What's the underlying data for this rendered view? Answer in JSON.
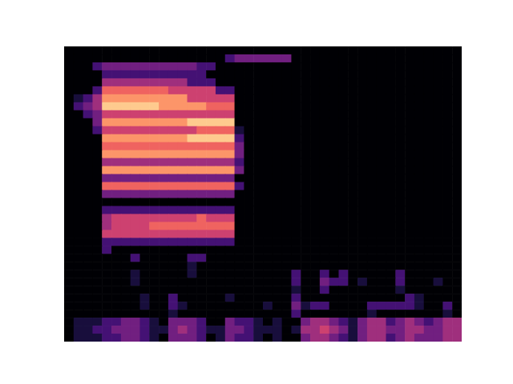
{
  "chart_data": {
    "type": "heatmap",
    "tick_labels": false,
    "xlim": [
      0,
      42
    ],
    "ylim": [
      0,
      37
    ],
    "crange": [
      0,
      9
    ],
    "cells": [
      [
        0,
        0,
        0,
        0,
        0,
        0,
        0,
        0,
        0,
        0,
        0,
        0,
        0,
        0,
        0,
        0,
        0,
        0,
        0,
        0,
        0,
        0,
        0,
        0,
        0,
        0,
        0,
        0,
        0,
        0,
        0,
        0,
        0,
        0,
        0,
        0,
        0,
        0,
        0,
        0,
        0,
        0
      ],
      [
        0,
        0,
        0,
        0,
        0,
        0,
        0,
        0,
        0,
        0,
        0,
        0,
        0,
        0,
        0,
        0,
        0,
        2,
        3,
        3,
        3,
        3,
        3,
        3,
        0,
        0,
        0,
        0,
        0,
        0,
        0,
        0,
        0,
        0,
        0,
        0,
        0,
        0,
        0,
        0,
        0,
        0
      ],
      [
        0,
        0,
        0,
        2,
        3,
        3,
        3,
        3,
        3,
        3,
        3,
        3,
        3,
        3,
        2,
        2,
        0,
        0,
        0,
        0,
        0,
        0,
        0,
        0,
        0,
        0,
        0,
        0,
        0,
        0,
        0,
        0,
        0,
        0,
        0,
        0,
        0,
        0,
        0,
        0,
        0,
        0
      ],
      [
        0,
        0,
        0,
        0,
        2,
        2,
        2,
        2,
        2,
        2,
        2,
        2,
        2,
        2,
        2,
        0,
        0,
        0,
        0,
        0,
        0,
        0,
        0,
        0,
        0,
        0,
        0,
        0,
        0,
        0,
        0,
        0,
        0,
        0,
        0,
        0,
        0,
        0,
        0,
        0,
        0,
        0
      ],
      [
        0,
        0,
        0,
        0,
        4,
        4,
        4,
        4,
        4,
        4,
        4,
        4,
        4,
        2,
        2,
        2,
        0,
        0,
        0,
        0,
        0,
        0,
        0,
        0,
        0,
        0,
        0,
        0,
        0,
        0,
        0,
        0,
        0,
        0,
        0,
        0,
        0,
        0,
        0,
        0,
        0,
        0
      ],
      [
        0,
        0,
        0,
        2,
        6,
        6,
        6,
        6,
        6,
        6,
        6,
        5,
        5,
        5,
        5,
        5,
        2,
        2,
        0,
        0,
        0,
        0,
        0,
        0,
        0,
        0,
        0,
        0,
        0,
        0,
        0,
        0,
        0,
        0,
        0,
        0,
        0,
        0,
        0,
        0,
        0,
        0
      ],
      [
        0,
        1,
        2,
        4,
        7,
        7,
        7,
        7,
        7,
        7,
        7,
        7,
        7,
        5,
        5,
        5,
        5,
        5,
        0,
        0,
        0,
        0,
        0,
        0,
        0,
        0,
        0,
        0,
        0,
        0,
        0,
        0,
        0,
        0,
        0,
        0,
        0,
        0,
        0,
        0,
        0,
        0
      ],
      [
        0,
        2,
        3,
        4,
        8,
        8,
        8,
        8,
        8,
        8,
        7,
        7,
        7,
        7,
        7,
        6,
        6,
        6,
        0,
        0,
        0,
        0,
        0,
        0,
        0,
        0,
        0,
        0,
        0,
        0,
        0,
        0,
        0,
        0,
        0,
        0,
        0,
        0,
        0,
        0,
        0,
        0
      ],
      [
        0,
        0,
        2,
        3,
        5,
        5,
        5,
        5,
        5,
        5,
        5,
        5,
        5,
        5,
        5,
        5,
        5,
        5,
        0,
        0,
        0,
        0,
        0,
        0,
        0,
        0,
        0,
        0,
        0,
        0,
        0,
        0,
        0,
        0,
        0,
        0,
        0,
        0,
        0,
        0,
        0,
        0
      ],
      [
        0,
        0,
        0,
        3,
        7,
        7,
        7,
        7,
        7,
        7,
        7,
        7,
        7,
        8,
        8,
        8,
        8,
        8,
        0,
        0,
        0,
        0,
        0,
        0,
        0,
        0,
        0,
        0,
        0,
        0,
        0,
        0,
        0,
        0,
        0,
        0,
        0,
        0,
        0,
        0,
        0,
        0
      ],
      [
        0,
        0,
        0,
        2,
        5,
        5,
        5,
        5,
        5,
        5,
        5,
        5,
        5,
        5,
        6,
        6,
        6,
        6,
        1,
        0,
        0,
        0,
        0,
        0,
        0,
        0,
        0,
        0,
        0,
        0,
        0,
        0,
        0,
        0,
        0,
        0,
        0,
        0,
        0,
        0,
        0,
        0
      ],
      [
        0,
        0,
        0,
        0,
        7,
        7,
        7,
        7,
        7,
        7,
        7,
        7,
        7,
        8,
        8,
        8,
        8,
        8,
        2,
        0,
        0,
        0,
        0,
        0,
        0,
        0,
        0,
        0,
        0,
        0,
        0,
        0,
        0,
        0,
        0,
        0,
        0,
        0,
        0,
        0,
        0,
        0
      ],
      [
        0,
        0,
        0,
        0,
        6,
        6,
        6,
        6,
        6,
        6,
        6,
        6,
        6,
        6,
        6,
        6,
        6,
        6,
        3,
        0,
        0,
        0,
        0,
        0,
        0,
        0,
        0,
        0,
        0,
        0,
        0,
        0,
        0,
        0,
        0,
        0,
        0,
        0,
        0,
        0,
        0,
        0
      ],
      [
        0,
        0,
        0,
        0,
        7,
        7,
        7,
        7,
        7,
        7,
        7,
        7,
        7,
        7,
        7,
        7,
        7,
        7,
        3,
        0,
        0,
        0,
        0,
        0,
        0,
        0,
        0,
        0,
        0,
        0,
        0,
        0,
        0,
        0,
        0,
        0,
        0,
        0,
        0,
        0,
        0,
        0
      ],
      [
        0,
        0,
        0,
        0,
        4,
        4,
        4,
        4,
        4,
        4,
        4,
        4,
        4,
        4,
        4,
        4,
        4,
        4,
        2,
        0,
        0,
        0,
        0,
        0,
        0,
        0,
        0,
        0,
        0,
        0,
        0,
        0,
        0,
        0,
        0,
        0,
        0,
        0,
        0,
        0,
        0,
        0
      ],
      [
        0,
        0,
        0,
        0,
        7,
        7,
        7,
        7,
        7,
        7,
        7,
        7,
        7,
        7,
        7,
        7,
        7,
        7,
        3,
        0,
        0,
        0,
        0,
        0,
        0,
        0,
        0,
        0,
        0,
        0,
        0,
        0,
        0,
        0,
        0,
        0,
        0,
        0,
        0,
        0,
        0,
        0
      ],
      [
        0,
        0,
        0,
        0,
        3,
        3,
        3,
        3,
        3,
        3,
        3,
        3,
        3,
        3,
        3,
        3,
        3,
        3,
        0,
        0,
        0,
        0,
        0,
        0,
        0,
        0,
        0,
        0,
        0,
        0,
        0,
        0,
        0,
        0,
        0,
        0,
        0,
        0,
        0,
        0,
        0,
        0
      ],
      [
        0,
        0,
        0,
        0,
        6,
        6,
        6,
        6,
        6,
        6,
        6,
        6,
        6,
        6,
        6,
        6,
        6,
        6,
        2,
        0,
        0,
        0,
        0,
        0,
        0,
        0,
        0,
        0,
        0,
        0,
        0,
        0,
        0,
        0,
        0,
        0,
        0,
        0,
        0,
        0,
        0,
        0
      ],
      [
        0,
        0,
        0,
        0,
        3,
        3,
        3,
        3,
        3,
        3,
        3,
        3,
        3,
        3,
        3,
        3,
        3,
        3,
        0,
        0,
        0,
        0,
        0,
        0,
        0,
        0,
        0,
        0,
        0,
        0,
        0,
        0,
        0,
        0,
        0,
        0,
        0,
        0,
        0,
        0,
        0,
        0
      ],
      [
        0,
        0,
        0,
        0,
        0,
        0,
        0,
        0,
        0,
        0,
        0,
        0,
        0,
        0,
        0,
        0,
        0,
        0,
        0,
        0,
        0,
        0,
        0,
        0,
        0,
        0,
        0,
        0,
        0,
        0,
        0,
        0,
        0,
        0,
        0,
        0,
        0,
        0,
        0,
        0,
        0,
        0
      ],
      [
        0,
        0,
        0,
        0,
        2,
        2,
        2,
        2,
        2,
        2,
        2,
        2,
        2,
        2,
        2,
        2,
        2,
        2,
        0,
        0,
        0,
        0,
        0,
        0,
        0,
        0,
        0,
        0,
        0,
        0,
        0,
        0,
        0,
        0,
        0,
        0,
        0,
        0,
        0,
        0,
        0,
        0
      ],
      [
        0,
        0,
        0,
        0,
        4,
        5,
        5,
        5,
        5,
        5,
        5,
        5,
        5,
        5,
        6,
        5,
        5,
        5,
        0,
        0,
        0,
        0,
        0,
        0,
        0,
        0,
        0,
        0,
        0,
        0,
        0,
        0,
        0,
        0,
        0,
        0,
        0,
        0,
        0,
        0,
        0,
        0
      ],
      [
        0,
        0,
        0,
        0,
        4,
        5,
        5,
        5,
        5,
        6,
        6,
        6,
        6,
        6,
        6,
        6,
        6,
        6,
        0,
        0,
        0,
        0,
        0,
        0,
        0,
        0,
        0,
        0,
        0,
        0,
        0,
        0,
        0,
        0,
        0,
        0,
        0,
        0,
        0,
        0,
        0,
        0
      ],
      [
        0,
        0,
        0,
        0,
        5,
        5,
        5,
        5,
        5,
        5,
        5,
        5,
        5,
        5,
        5,
        5,
        5,
        5,
        0,
        0,
        0,
        0,
        0,
        0,
        0,
        0,
        0,
        0,
        0,
        0,
        0,
        0,
        0,
        0,
        0,
        0,
        0,
        0,
        0,
        0,
        0,
        0
      ],
      [
        0,
        0,
        0,
        0,
        2,
        2,
        2,
        2,
        2,
        2,
        2,
        2,
        2,
        2,
        2,
        2,
        2,
        2,
        0,
        0,
        0,
        0,
        0,
        0,
        0,
        0,
        0,
        0,
        0,
        0,
        0,
        0,
        0,
        0,
        0,
        0,
        0,
        0,
        0,
        0,
        0,
        0
      ],
      [
        0,
        0,
        0,
        0,
        2,
        0,
        0,
        0,
        0,
        0,
        0,
        0,
        0,
        0,
        0,
        0,
        0,
        0,
        0,
        0,
        0,
        0,
        0,
        0,
        0,
        0,
        0,
        0,
        0,
        0,
        0,
        0,
        0,
        0,
        0,
        0,
        0,
        0,
        0,
        0,
        0,
        0
      ],
      [
        0,
        0,
        0,
        0,
        0,
        0,
        0,
        2,
        0,
        0,
        0,
        0,
        0,
        2,
        2,
        0,
        0,
        0,
        0,
        0,
        0,
        0,
        0,
        0,
        0,
        0,
        0,
        0,
        0,
        0,
        0,
        0,
        0,
        0,
        0,
        0,
        0,
        0,
        0,
        0,
        0,
        0
      ],
      [
        0,
        0,
        0,
        0,
        0,
        0,
        0,
        0,
        0,
        0,
        0,
        0,
        0,
        1,
        0,
        0,
        0,
        0,
        0,
        0,
        0,
        0,
        0,
        0,
        0,
        0,
        0,
        0,
        0,
        0,
        0,
        0,
        0,
        0,
        0,
        0,
        0,
        0,
        0,
        0,
        0,
        0
      ],
      [
        0,
        0,
        0,
        0,
        0,
        0,
        0,
        1,
        0,
        0,
        0,
        0,
        0,
        1,
        0,
        0,
        0,
        0,
        0,
        0,
        0,
        0,
        0,
        0,
        2,
        0,
        0,
        2,
        0,
        2,
        0,
        0,
        0,
        0,
        0,
        2,
        0,
        0,
        0,
        0,
        0,
        0
      ],
      [
        0,
        0,
        0,
        0,
        0,
        0,
        0,
        1,
        0,
        0,
        0,
        0,
        0,
        0,
        0,
        0,
        0,
        0,
        0,
        0,
        0,
        0,
        0,
        0,
        2,
        0,
        0,
        3,
        2,
        2,
        0,
        1,
        0,
        0,
        0,
        2,
        0,
        0,
        0,
        1,
        0,
        0
      ],
      [
        0,
        0,
        0,
        0,
        0,
        0,
        0,
        0,
        0,
        0,
        0,
        0,
        0,
        0,
        0,
        0,
        0,
        0,
        0,
        0,
        0,
        0,
        0,
        0,
        1,
        0,
        0,
        2,
        0,
        0,
        0,
        0,
        0,
        0,
        0,
        1,
        0,
        0,
        0,
        0,
        0,
        0
      ],
      [
        0,
        0,
        0,
        0,
        0,
        0,
        0,
        0,
        1,
        0,
        0,
        2,
        0,
        0,
        0,
        0,
        0,
        1,
        0,
        0,
        0,
        0,
        0,
        0,
        2,
        0,
        0,
        0,
        0,
        0,
        0,
        0,
        0,
        0,
        0,
        0,
        2,
        1,
        0,
        0,
        0,
        0
      ],
      [
        0,
        0,
        0,
        0,
        0,
        0,
        0,
        0,
        1,
        0,
        0,
        2,
        1,
        0,
        0,
        0,
        0,
        0,
        0,
        0,
        0,
        1,
        0,
        0,
        3,
        1,
        2,
        2,
        0,
        0,
        0,
        0,
        2,
        2,
        2,
        2,
        2,
        1,
        0,
        0,
        2,
        0
      ],
      [
        0,
        0,
        0,
        0,
        0,
        0,
        0,
        0,
        0,
        0,
        0,
        1,
        0,
        0,
        0,
        0,
        0,
        0,
        0,
        0,
        0,
        0,
        0,
        0,
        2,
        0,
        0,
        0,
        0,
        0,
        0,
        0,
        1,
        0,
        0,
        0,
        0,
        0,
        0,
        0,
        1,
        0
      ],
      [
        0,
        1,
        1,
        1,
        2,
        2,
        3,
        3,
        2,
        1,
        0,
        3,
        3,
        3,
        2,
        0,
        0,
        3,
        2,
        2,
        1,
        0,
        1,
        0,
        0,
        3,
        4,
        4,
        3,
        2,
        1,
        3,
        4,
        4,
        2,
        3,
        4,
        3,
        2,
        3,
        4,
        4
      ],
      [
        0,
        1,
        1,
        2,
        2,
        3,
        3,
        3,
        2,
        1,
        1,
        3,
        4,
        3,
        2,
        1,
        1,
        3,
        3,
        2,
        1,
        1,
        1,
        0,
        1,
        4,
        4,
        5,
        4,
        3,
        1,
        3,
        4,
        4,
        3,
        3,
        4,
        4,
        3,
        3,
        4,
        4
      ],
      [
        0,
        1,
        1,
        1,
        2,
        2,
        3,
        3,
        2,
        1,
        0,
        3,
        3,
        3,
        2,
        0,
        1,
        3,
        2,
        2,
        1,
        0,
        1,
        0,
        0,
        3,
        4,
        4,
        3,
        2,
        1,
        3,
        4,
        4,
        2,
        3,
        4,
        3,
        3,
        3,
        4,
        4
      ]
    ]
  }
}
